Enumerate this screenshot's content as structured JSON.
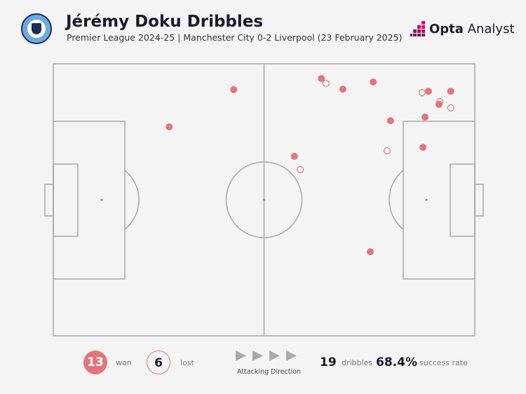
{
  "header": {
    "title": "Jérémy Doku Dribbles",
    "subtitle": "Premier League 2024-25 | Manchester City 0-2 Liverpool (23 February 2025)",
    "club_badge": "manchester-city-badge",
    "brand_logo": "Opta Analyst",
    "brand_bold": "Opta",
    "brand_light": "Analyst"
  },
  "colors": {
    "won": "#e3757c",
    "lost": "#e3757c",
    "pitch_line": "#a8a8a8",
    "background": "#f4f4f4"
  },
  "chart_data": {
    "type": "scatter",
    "title": "Jérémy Doku Dribbles",
    "xlim": [
      0,
      100
    ],
    "ylim": [
      0,
      100
    ],
    "series": [
      {
        "name": "won",
        "marker": "filled",
        "points": [
          [
            63.6,
            5.4
          ],
          [
            68.7,
            9.3
          ],
          [
            75.9,
            6.7
          ],
          [
            89.0,
            10.1
          ],
          [
            94.3,
            10.1
          ],
          [
            91.5,
            14.9
          ],
          [
            88.2,
            19.6
          ],
          [
            80.0,
            20.9
          ],
          [
            87.7,
            30.7
          ],
          [
            57.2,
            34.0
          ],
          [
            42.8,
            9.5
          ],
          [
            27.5,
            23.2
          ],
          [
            75.2,
            69.1
          ]
        ]
      },
      {
        "name": "lost",
        "marker": "hollow",
        "points": [
          [
            64.7,
            7.2
          ],
          [
            87.5,
            10.6
          ],
          [
            91.7,
            13.9
          ],
          [
            94.3,
            16.2
          ],
          [
            79.2,
            32.0
          ],
          [
            58.6,
            38.9
          ]
        ]
      }
    ]
  },
  "footer": {
    "won_count": "13",
    "won_label": "won",
    "lost_count": "6",
    "lost_label": "lost",
    "direction_label": "Attacking Direction",
    "total": "19",
    "total_label": "dribbles",
    "rate": "68.4%",
    "rate_label": "success rate"
  }
}
